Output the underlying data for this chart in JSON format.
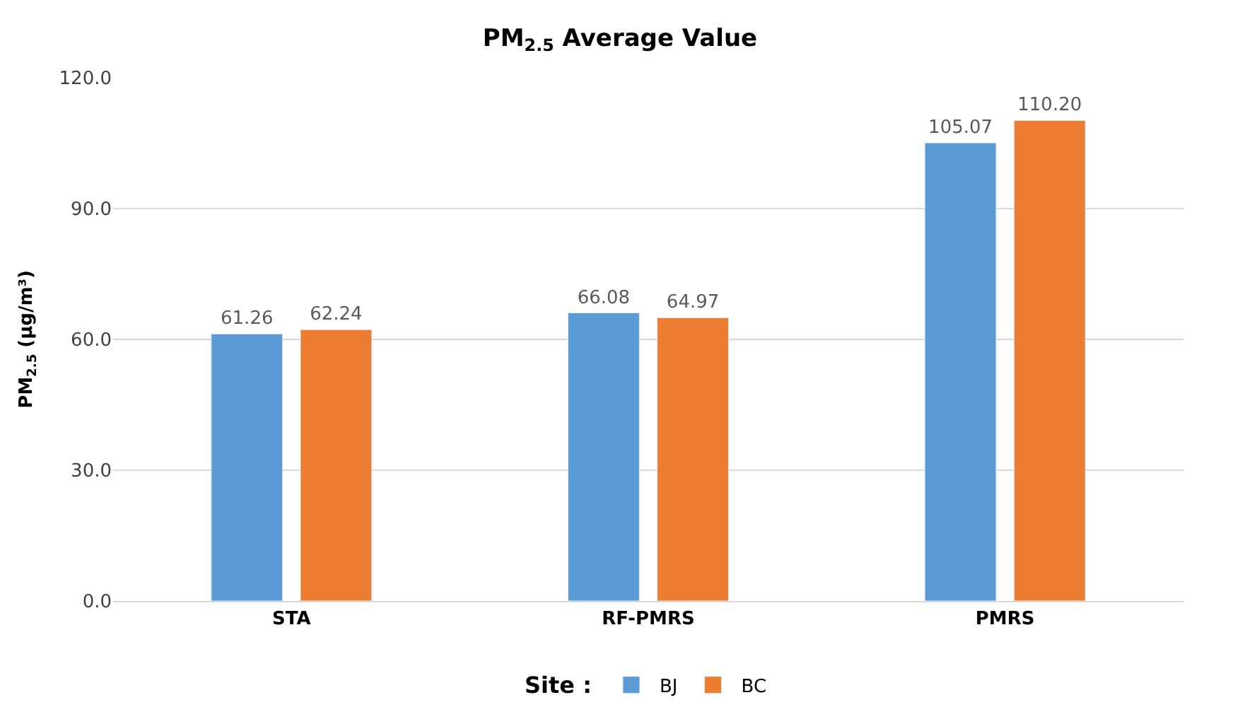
{
  "chart_data": {
    "type": "bar",
    "title": "PM$_{2.5}$ Average Value",
    "ylabel": "PM$_{2.5}$ (µg/m³)",
    "legend_title": "Site :",
    "categories": [
      "STA",
      "RF-PMRS",
      "PMRS"
    ],
    "series": [
      {
        "name": "BJ",
        "color": "#5b9bd5",
        "values": [
          61.26,
          66.08,
          105.07
        ],
        "value_labels": [
          "61.26",
          "66.08",
          "105.07"
        ]
      },
      {
        "name": "BC",
        "color": "#ed7d31",
        "values": [
          62.24,
          64.97,
          110.2
        ],
        "value_labels": [
          "62.24",
          "64.97",
          "110.20"
        ]
      }
    ],
    "ylim": [
      0,
      120
    ],
    "yticks": [
      {
        "value": 0,
        "label": "0.0"
      },
      {
        "value": 30,
        "label": "30.0"
      },
      {
        "value": 60,
        "label": "60.0"
      },
      {
        "value": 90,
        "label": "90.0"
      },
      {
        "value": 120,
        "label": "120.0"
      }
    ],
    "grid": "y",
    "legend": "bottom"
  }
}
